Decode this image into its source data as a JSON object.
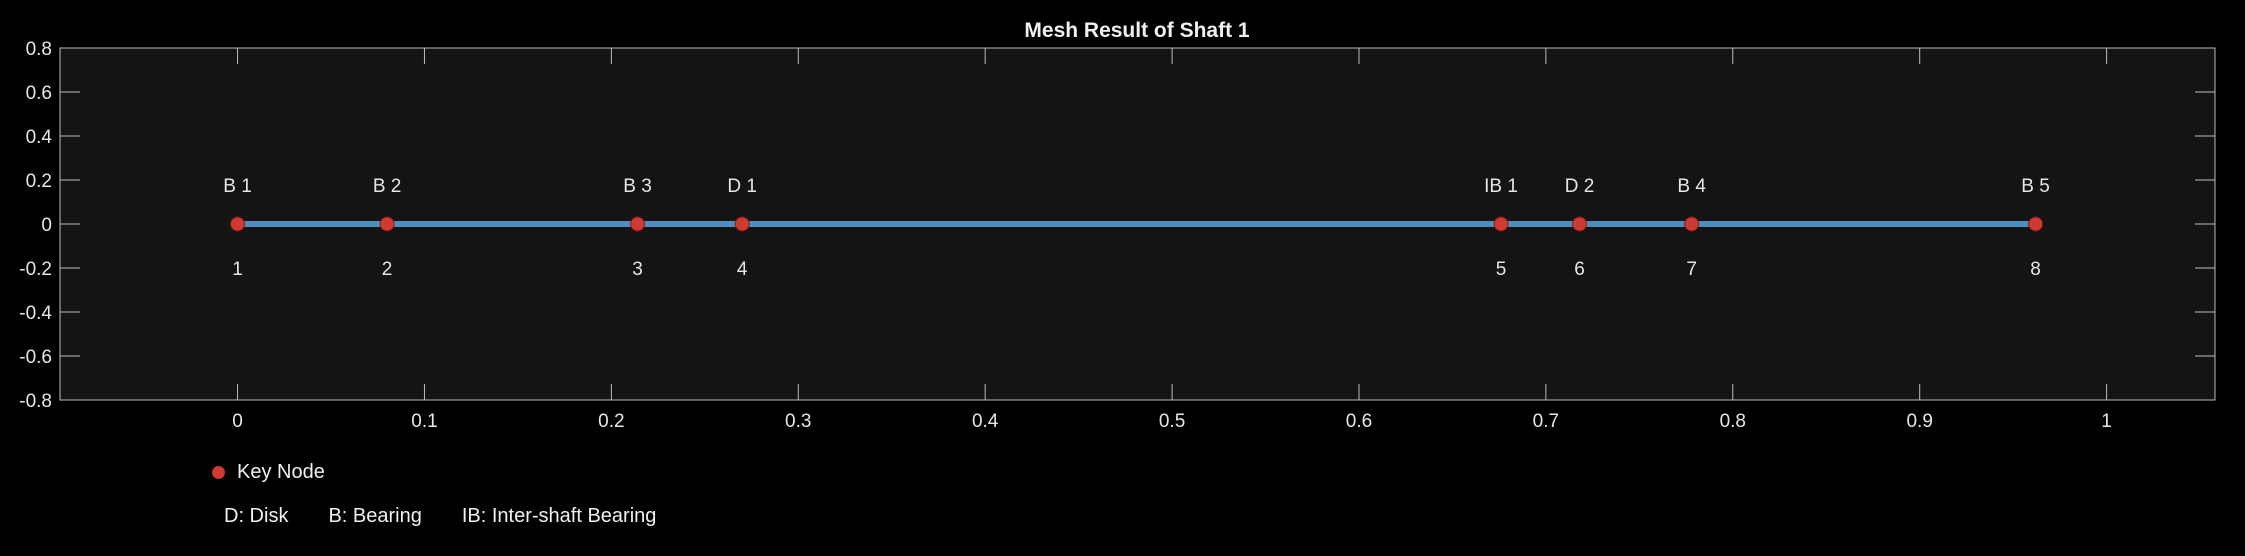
{
  "chart_data": {
    "type": "line",
    "title": "Mesh Result of Shaft 1",
    "xlabel": "",
    "ylabel": "",
    "xlim": [
      -0.095,
      1.058
    ],
    "ylim": [
      -0.8,
      0.8
    ],
    "x_ticks": [
      0,
      0.1,
      0.2,
      0.3,
      0.4,
      0.5,
      0.6,
      0.7,
      0.8,
      0.9,
      1
    ],
    "x_tick_labels": [
      "0",
      "0.1",
      "0.2",
      "0.3",
      "0.4",
      "0.5",
      "0.6",
      "0.7",
      "0.8",
      "0.9",
      "1"
    ],
    "y_ticks": [
      0.8,
      0.6,
      0.4,
      0.2,
      0,
      -0.2,
      -0.4,
      -0.6,
      -0.8
    ],
    "y_tick_labels": [
      "0.8",
      "0.6",
      "0.4",
      "0.2",
      "0",
      "-0.2",
      "-0.4",
      "-0.6",
      "-0.8"
    ],
    "grid": false,
    "shaft": {
      "x": [
        0,
        0.962
      ],
      "y": [
        0,
        0
      ]
    },
    "series": [
      {
        "name": "Key Node",
        "x": [
          0,
          0.08,
          0.214,
          0.27,
          0.676,
          0.718,
          0.778,
          0.962
        ],
        "y": [
          0,
          0,
          0,
          0,
          0,
          0,
          0,
          0
        ],
        "node_numbers": [
          "1",
          "2",
          "3",
          "4",
          "5",
          "6",
          "7",
          "8"
        ],
        "component_labels": [
          "B 1",
          "B 2",
          "B 3",
          "D 1",
          "IB 1",
          "D 2",
          "B 4",
          "B 5"
        ]
      }
    ],
    "legend_position": "bottom-left"
  },
  "legend": {
    "key_node_label": "Key Node",
    "notes": [
      "D: Disk",
      "B: Bearing",
      "IB: Inter-shaft Bearing"
    ]
  },
  "colors": {
    "background": "#000000",
    "axes_background": "#141414",
    "axes_edge": "#bdbdbd",
    "shaft_line": "#4f8fbf",
    "node_fill": "#d03a34",
    "text": "#e6e6e6"
  }
}
